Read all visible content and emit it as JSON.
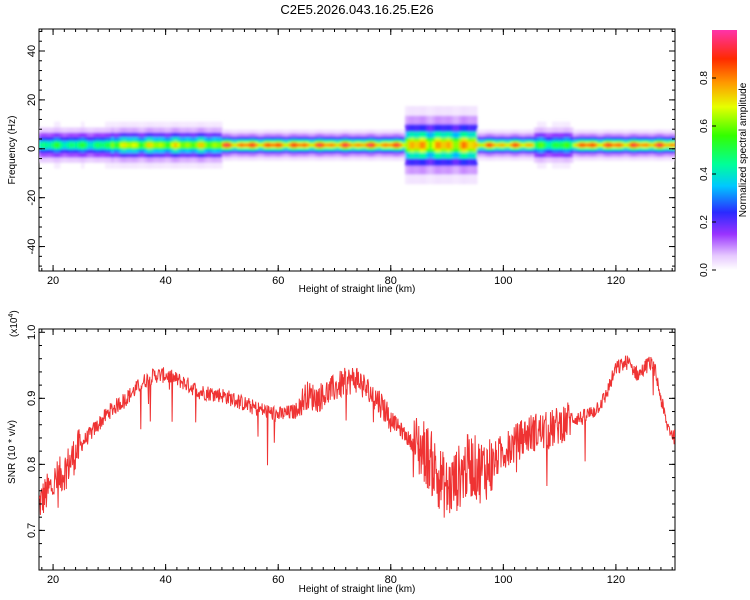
{
  "title": "C2E5.2026.043.16.25.E26",
  "chart_data": [
    {
      "type": "heatmap",
      "xlabel": "Height of straight line (km)",
      "ylabel": "Frequency (Hz)",
      "xlim": [
        17.5,
        130.5
      ],
      "ylim": [
        -50,
        49
      ],
      "x_ticks": [
        20,
        40,
        60,
        80,
        100,
        120
      ],
      "y_ticks": [
        -40,
        -20,
        0,
        20,
        40
      ],
      "colorbar": {
        "label": "Normalized spectral amplitude",
        "range": [
          0,
          1
        ],
        "ticks": [
          0.0,
          0.2,
          0.4,
          0.6,
          0.8
        ],
        "tick_labels": [
          "0.0",
          "0.2",
          "0.4",
          "0.6",
          "0.8"
        ]
      },
      "band": {
        "center_hz": 1.5,
        "segments": [
          {
            "x": [
              17.5,
              30
            ],
            "peak_amplitude": 0.55,
            "width_hz": 3
          },
          {
            "x": [
              30,
              50
            ],
            "peak_amplitude": 0.75,
            "width_hz": 3
          },
          {
            "x": [
              50,
              82
            ],
            "peak_amplitude": 0.95,
            "width_hz": 2
          },
          {
            "x": [
              82,
              95
            ],
            "peak_amplitude": 0.85,
            "width_hz": 5
          },
          {
            "x": [
              95,
              105
            ],
            "peak_amplitude": 0.9,
            "width_hz": 2
          },
          {
            "x": [
              105,
              112
            ],
            "peak_amplitude": 0.6,
            "width_hz": 3
          },
          {
            "x": [
              112,
              130.5
            ],
            "peak_amplitude": 0.95,
            "width_hz": 2
          }
        ]
      }
    },
    {
      "type": "line",
      "xlabel": "Height of straight line (km)",
      "ylabel": "SNR (10 * v/v)",
      "y_scale_label": "(x10",
      "y_scale_exponent": "4",
      "y_scale_close": ")",
      "xlim": [
        17.5,
        130.5
      ],
      "ylim": [
        0.64,
        1.005
      ],
      "x_ticks": [
        20,
        40,
        60,
        80,
        100,
        120
      ],
      "y_ticks": [
        0.7,
        0.8,
        0.9,
        1.0
      ],
      "y_tick_labels": [
        "0.7",
        "0.8",
        "0.9",
        "1.0"
      ],
      "series": [
        {
          "color": "#ef3333",
          "x": [
            17.5,
            20,
            22,
            25,
            28,
            30,
            33,
            36,
            38,
            40,
            43,
            46,
            50,
            53,
            56,
            60,
            63,
            65,
            67,
            70,
            72,
            74,
            76,
            78,
            80,
            82,
            84,
            86,
            88,
            90,
            92,
            94,
            96,
            98,
            100,
            102,
            104,
            106,
            108,
            110,
            112,
            114,
            116,
            118,
            120,
            122,
            124,
            126,
            127,
            128,
            129,
            130.5
          ],
          "y": [
            0.74,
            0.77,
            0.79,
            0.83,
            0.86,
            0.88,
            0.9,
            0.925,
            0.935,
            0.935,
            0.925,
            0.91,
            0.905,
            0.895,
            0.885,
            0.875,
            0.88,
            0.905,
            0.9,
            0.915,
            0.925,
            0.93,
            0.91,
            0.895,
            0.87,
            0.85,
            0.83,
            0.82,
            0.79,
            0.76,
            0.78,
            0.8,
            0.79,
            0.8,
            0.82,
            0.83,
            0.845,
            0.85,
            0.85,
            0.86,
            0.87,
            0.87,
            0.88,
            0.9,
            0.945,
            0.955,
            0.935,
            0.955,
            0.94,
            0.9,
            0.86,
            0.84
          ]
        }
      ]
    }
  ]
}
